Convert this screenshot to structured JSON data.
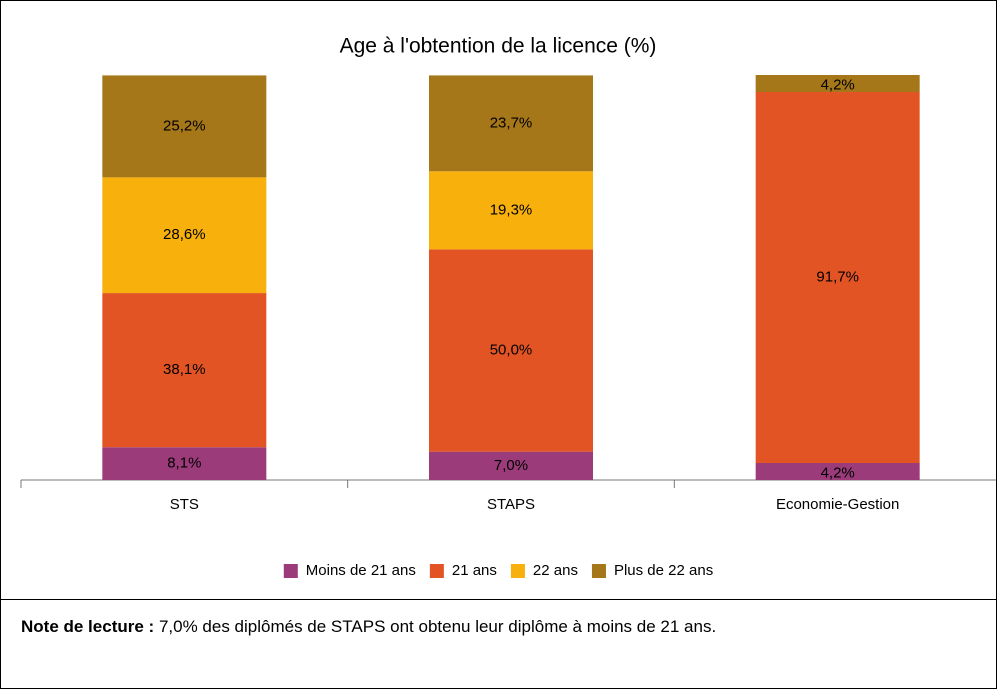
{
  "chart_data": {
    "type": "stacked_bar",
    "title": "Age à l'obtention de la licence (%)",
    "categories": [
      "STS",
      "STAPS",
      "Economie-Gestion"
    ],
    "series": [
      {
        "name": "Moins de 21 ans",
        "color": "#9b3b7a",
        "values": [
          8.1,
          7.0,
          4.2
        ],
        "value_labels": [
          "8,1%",
          "7,0%",
          "4,2%"
        ]
      },
      {
        "name": "21 ans",
        "color": "#e35425",
        "values": [
          38.1,
          50.0,
          91.7
        ],
        "value_labels": [
          "38,1%",
          "50,0%",
          "91,7%"
        ]
      },
      {
        "name": "22 ans",
        "color": "#f8b00c",
        "values": [
          28.6,
          19.3,
          null
        ],
        "value_labels": [
          "28,6%",
          "19,3%",
          null
        ]
      },
      {
        "name": "Plus de 22 ans",
        "color": "#a67718",
        "values": [
          25.2,
          23.7,
          4.2
        ],
        "value_labels": [
          "25,2%",
          "23,7%",
          "4,2%"
        ]
      }
    ],
    "legend": "bottom"
  },
  "note": {
    "label": "Note de lecture :",
    "text": "7,0% des diplômés de STAPS ont obtenu leur diplôme à moins de 21 ans."
  }
}
